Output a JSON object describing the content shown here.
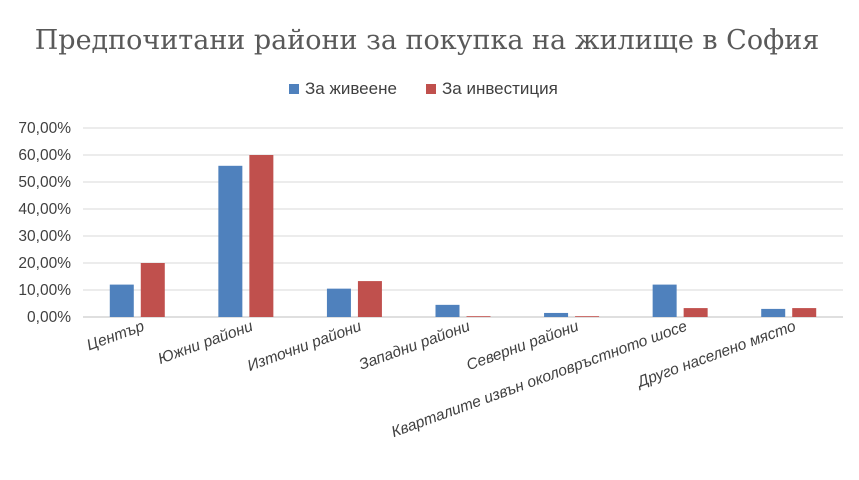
{
  "chart_data": {
    "type": "bar",
    "title": "Предпочитани райони за покупка на жилище в София",
    "categories": [
      "Център",
      "Южни райони",
      "Източни райони",
      "Западни райони",
      "Северни райони",
      "Кварталите извън околовръстното шосе",
      "Друго населено място"
    ],
    "series": [
      {
        "name": "За живеене",
        "color": "#4f81bd",
        "values": [
          12.0,
          56.0,
          10.5,
          4.5,
          1.5,
          12.0,
          3.0
        ]
      },
      {
        "name": "За инвестиция",
        "color": "#c0504d",
        "values": [
          20.0,
          60.0,
          13.3,
          0.3,
          0.3,
          3.3,
          3.3
        ]
      }
    ],
    "ylim": [
      0,
      70
    ],
    "yticks": [
      "0,00%",
      "10,00%",
      "20,00%",
      "30,00%",
      "40,00%",
      "50,00%",
      "60,00%",
      "70,00%"
    ],
    "xlabel": "",
    "ylabel": "",
    "grid": true,
    "legend_position": "top-center"
  }
}
